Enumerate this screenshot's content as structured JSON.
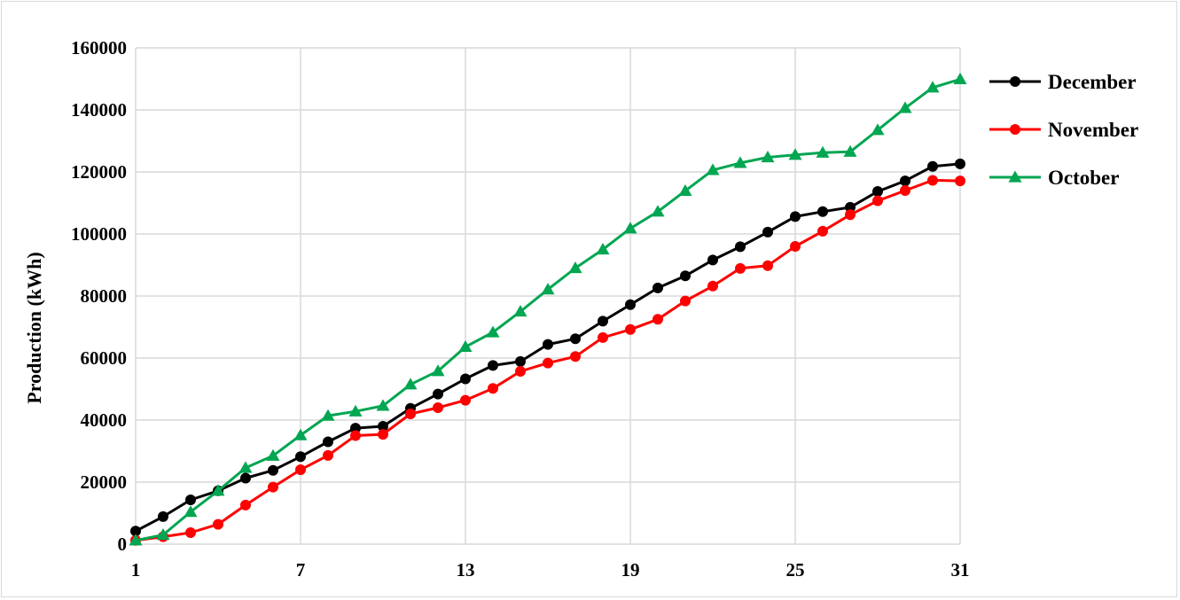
{
  "chart_data": {
    "type": "line",
    "title": "",
    "xlabel": "",
    "ylabel": "Production (kWh)",
    "x": [
      1,
      2,
      3,
      4,
      5,
      6,
      7,
      8,
      9,
      10,
      11,
      12,
      13,
      14,
      15,
      16,
      17,
      18,
      19,
      20,
      21,
      22,
      23,
      24,
      25,
      26,
      27,
      28,
      29,
      30,
      31
    ],
    "xticks": [
      1,
      7,
      13,
      19,
      25,
      31
    ],
    "xlim": [
      1,
      31
    ],
    "yticks": [
      0,
      20000,
      40000,
      60000,
      80000,
      100000,
      120000,
      140000,
      160000
    ],
    "ylim": [
      0,
      160000
    ],
    "grid": true,
    "legend_position": "right",
    "series": [
      {
        "name": "December",
        "color": "#000000",
        "marker": "circle",
        "values": [
          4200,
          8900,
          14300,
          17200,
          21300,
          23800,
          28200,
          33000,
          37400,
          38000,
          43800,
          48400,
          53300,
          57600,
          58900,
          64400,
          66200,
          71900,
          77200,
          82600,
          86500,
          91600,
          95900,
          100600,
          105600,
          107200,
          108600,
          113700,
          117100,
          121800,
          122600
        ]
      },
      {
        "name": "November",
        "color": "#ff0000",
        "marker": "circle",
        "values": [
          1200,
          2400,
          3700,
          6400,
          12600,
          18400,
          24000,
          28600,
          35000,
          35400,
          42000,
          44000,
          46400,
          50200,
          55700,
          58400,
          60500,
          66600,
          69200,
          72500,
          78400,
          83200,
          88900,
          89800,
          96000,
          100900,
          106200,
          110700,
          114000,
          117300,
          117100
        ]
      },
      {
        "name": "October",
        "color": "#00a651",
        "marker": "triangle",
        "values": [
          1200,
          3000,
          10400,
          17200,
          24600,
          28500,
          35100,
          41400,
          42800,
          44600,
          51500,
          55800,
          63600,
          68300,
          75000,
          82100,
          89000,
          95000,
          101800,
          107200,
          113900,
          120600,
          122900,
          124700,
          125500,
          126200,
          126500,
          133500,
          140600,
          147200,
          149900
        ]
      }
    ]
  }
}
